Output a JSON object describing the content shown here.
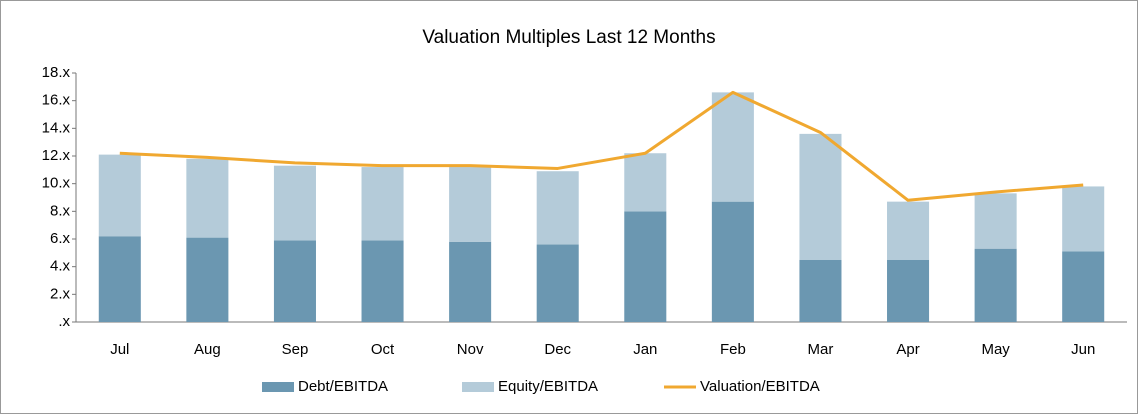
{
  "chart_data": {
    "type": "bar",
    "title": "Valuation Multiples Last 12 Months",
    "categories": [
      "Jul",
      "Aug",
      "Sep",
      "Oct",
      "Nov",
      "Dec",
      "Jan",
      "Feb",
      "Mar",
      "Apr",
      "May",
      "Jun"
    ],
    "series": [
      {
        "name": "Debt/EBITDA",
        "type": "bar",
        "color": "#6b97b1",
        "values": [
          6.2,
          6.1,
          5.9,
          5.9,
          5.8,
          5.6,
          8.0,
          8.7,
          4.5,
          4.5,
          5.3,
          5.1
        ]
      },
      {
        "name": "Equity/EBITDA",
        "type": "bar",
        "color": "#b4cbd9",
        "values": [
          5.9,
          5.7,
          5.4,
          5.3,
          5.4,
          5.3,
          4.2,
          7.9,
          9.1,
          4.2,
          4.0,
          4.7
        ]
      },
      {
        "name": "Valuation/EBITDA",
        "type": "line",
        "color": "#f0a830",
        "values": [
          12.2,
          11.9,
          11.5,
          11.3,
          11.3,
          11.1,
          12.2,
          16.6,
          13.7,
          8.8,
          9.4,
          9.9
        ]
      }
    ],
    "stacked": true,
    "ylim": [
      0,
      18
    ],
    "yticks": [
      {
        "value": 0,
        "label": ".x"
      },
      {
        "value": 2,
        "label": "2.x"
      },
      {
        "value": 4,
        "label": "4.x"
      },
      {
        "value": 6,
        "label": "6.x"
      },
      {
        "value": 8,
        "label": "8.x"
      },
      {
        "value": 10,
        "label": "10.x"
      },
      {
        "value": 12,
        "label": "12.x"
      },
      {
        "value": 14,
        "label": "14.x"
      },
      {
        "value": 16,
        "label": "16.x"
      },
      {
        "value": 18,
        "label": "18.x"
      }
    ],
    "grid": false,
    "legend": "bottom"
  }
}
